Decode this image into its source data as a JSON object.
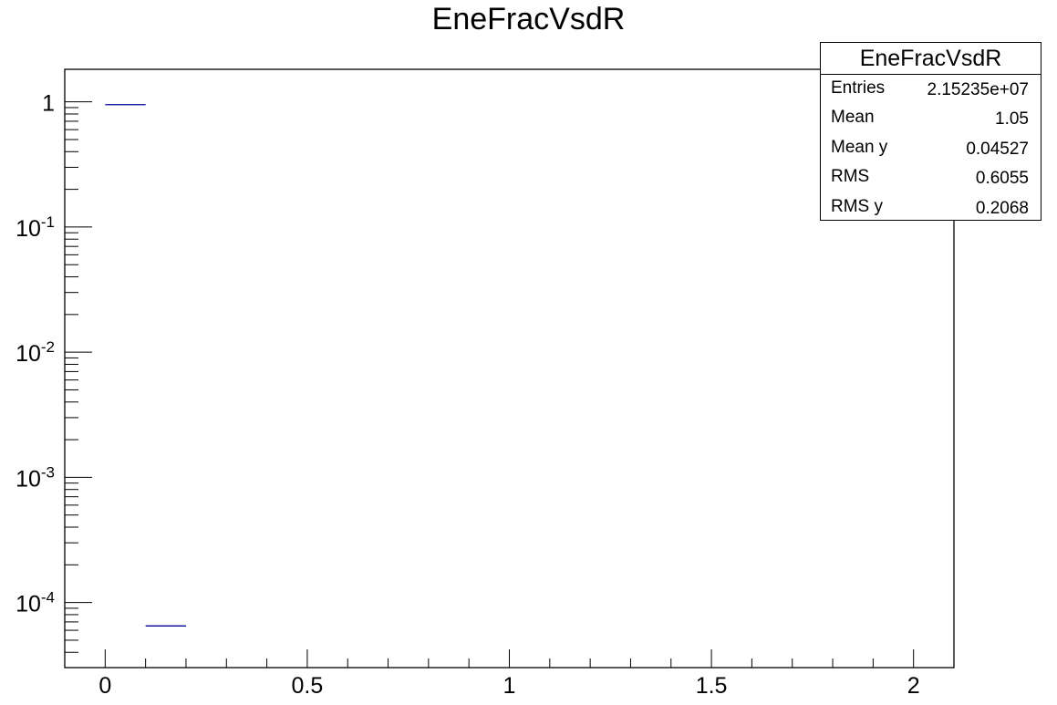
{
  "chart_data": {
    "type": "bar",
    "title": "EneFracVsdR",
    "xlim": [
      -0.1,
      2.1
    ],
    "ylim_log10": [
      -4.52,
      0.26
    ],
    "log_y": true,
    "x_ticks": [
      {
        "value": 0,
        "label": "0"
      },
      {
        "value": 0.5,
        "label": "0.5"
      },
      {
        "value": 1,
        "label": "1"
      },
      {
        "value": 1.5,
        "label": "1.5"
      },
      {
        "value": 2,
        "label": "2"
      }
    ],
    "y_ticks": [
      {
        "value": 1,
        "label": "1"
      },
      {
        "value": 0.1,
        "label": "10",
        "exp": "-1"
      },
      {
        "value": 0.01,
        "label": "10",
        "exp": "-2"
      },
      {
        "value": 0.001,
        "label": "10",
        "exp": "-3"
      },
      {
        "value": 0.0001,
        "label": "10",
        "exp": "-4"
      }
    ],
    "bins": [
      {
        "x_low": 0.0,
        "x_high": 0.1,
        "value": 0.95
      },
      {
        "x_low": 0.1,
        "x_high": 0.2,
        "value": 6.5e-05
      }
    ],
    "series_color": "#000099",
    "stats_box": {
      "title": "EneFracVsdR",
      "rows": [
        {
          "label": "Entries",
          "value": "2.15235e+07"
        },
        {
          "label": "Mean",
          "value": "1.05"
        },
        {
          "label": "Mean y",
          "value": "0.04527"
        },
        {
          "label": "RMS",
          "value": "0.6055"
        },
        {
          "label": "RMS y",
          "value": "0.2068"
        }
      ]
    }
  }
}
